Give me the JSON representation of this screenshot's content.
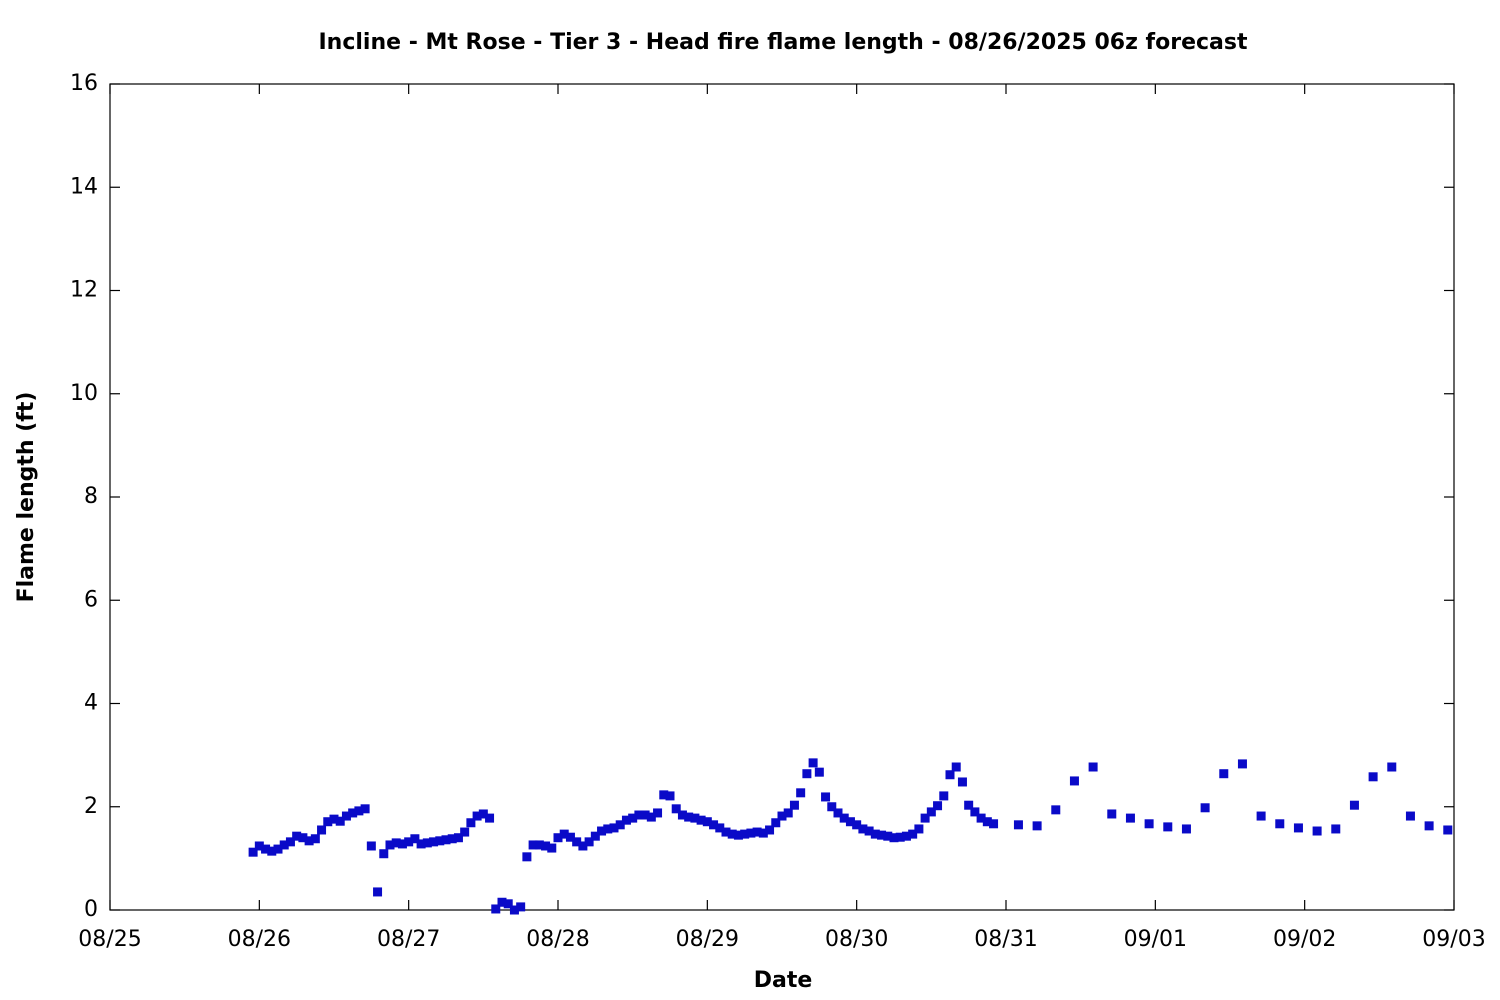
{
  "chart_data": {
    "type": "scatter",
    "title": "Incline - Mt Rose - Tier 3 - Head fire flame length - 08/26/2025 06z forecast",
    "xlabel": "Date",
    "ylabel": "Flame length (ft)",
    "color": "#0a0ac8",
    "x": [
      23,
      24,
      25,
      26,
      27,
      28,
      29,
      30,
      31,
      32,
      33,
      34,
      35,
      36,
      37,
      38,
      39,
      40,
      41,
      42,
      43,
      44,
      45,
      46,
      47,
      48,
      49,
      50,
      51,
      52,
      53,
      54,
      55,
      56,
      57,
      58,
      59,
      60,
      61,
      62,
      63,
      64,
      65,
      66,
      67,
      68,
      69,
      70,
      71,
      72,
      73,
      74,
      75,
      76,
      77,
      78,
      79,
      80,
      81,
      82,
      83,
      84,
      85,
      86,
      87,
      88,
      89,
      90,
      91,
      92,
      93,
      94,
      95,
      96,
      97,
      98,
      99,
      100,
      101,
      102,
      103,
      104,
      105,
      106,
      107,
      108,
      109,
      110,
      111,
      112,
      113,
      114,
      115,
      116,
      117,
      118,
      119,
      120,
      121,
      122,
      123,
      124,
      125,
      126,
      127,
      128,
      129,
      130,
      131,
      132,
      133,
      134,
      135,
      136,
      137,
      138,
      139,
      140,
      141,
      142,
      146,
      149,
      152,
      155,
      158,
      161,
      164,
      167,
      170,
      173,
      176,
      179,
      182,
      185,
      188,
      191,
      194,
      197,
      200,
      203,
      206,
      209,
      212,
      215
    ],
    "values": [
      1.12,
      1.24,
      1.18,
      1.14,
      1.18,
      1.26,
      1.32,
      1.43,
      1.4,
      1.34,
      1.38,
      1.55,
      1.71,
      1.76,
      1.72,
      1.82,
      1.88,
      1.92,
      1.96,
      1.24,
      0.35,
      1.09,
      1.26,
      1.3,
      1.28,
      1.32,
      1.38,
      1.28,
      1.3,
      1.32,
      1.34,
      1.36,
      1.38,
      1.4,
      1.51,
      1.69,
      1.82,
      1.86,
      1.78,
      0.02,
      0.15,
      0.12,
      0,
      0.06,
      1.03,
      1.26,
      1.26,
      1.24,
      1.2,
      1.4,
      1.47,
      1.41,
      1.32,
      1.24,
      1.32,
      1.43,
      1.53,
      1.57,
      1.59,
      1.65,
      1.74,
      1.78,
      1.84,
      1.84,
      1.8,
      1.88,
      2.23,
      2.21,
      1.96,
      1.84,
      1.8,
      1.78,
      1.74,
      1.71,
      1.65,
      1.59,
      1.51,
      1.47,
      1.45,
      1.47,
      1.49,
      1.51,
      1.49,
      1.55,
      1.69,
      1.82,
      1.88,
      2.03,
      2.27,
      2.64,
      2.85,
      2.67,
      2.19,
      2.0,
      1.88,
      1.78,
      1.71,
      1.65,
      1.57,
      1.53,
      1.47,
      1.45,
      1.43,
      1.4,
      1.41,
      1.43,
      1.47,
      1.57,
      1.78,
      1.9,
      2.02,
      2.21,
      2.62,
      2.77,
      2.48,
      2.03,
      1.9,
      1.78,
      1.71,
      1.67,
      1.65,
      1.63,
      1.94,
      2.5,
      2.77,
      1.86,
      1.78,
      1.67,
      1.61,
      1.57,
      1.98,
      2.64,
      2.83,
      1.82,
      1.67,
      1.59,
      1.53,
      1.57,
      2.03,
      2.58,
      2.77,
      1.82,
      1.63,
      1.55
    ],
    "xlim": [
      0,
      216
    ],
    "xticks": [
      {
        "value": 0,
        "label": "08/25"
      },
      {
        "value": 24,
        "label": "08/26"
      },
      {
        "value": 48,
        "label": "08/27"
      },
      {
        "value": 72,
        "label": "08/28"
      },
      {
        "value": 96,
        "label": "08/29"
      },
      {
        "value": 120,
        "label": "08/30"
      },
      {
        "value": 144,
        "label": "08/31"
      },
      {
        "value": 168,
        "label": "09/01"
      },
      {
        "value": 192,
        "label": "09/02"
      },
      {
        "value": 216,
        "label": "09/03"
      }
    ],
    "ylim": [
      0,
      16
    ],
    "yticks": [
      0,
      2,
      4,
      6,
      8,
      10,
      12,
      14,
      16
    ]
  }
}
